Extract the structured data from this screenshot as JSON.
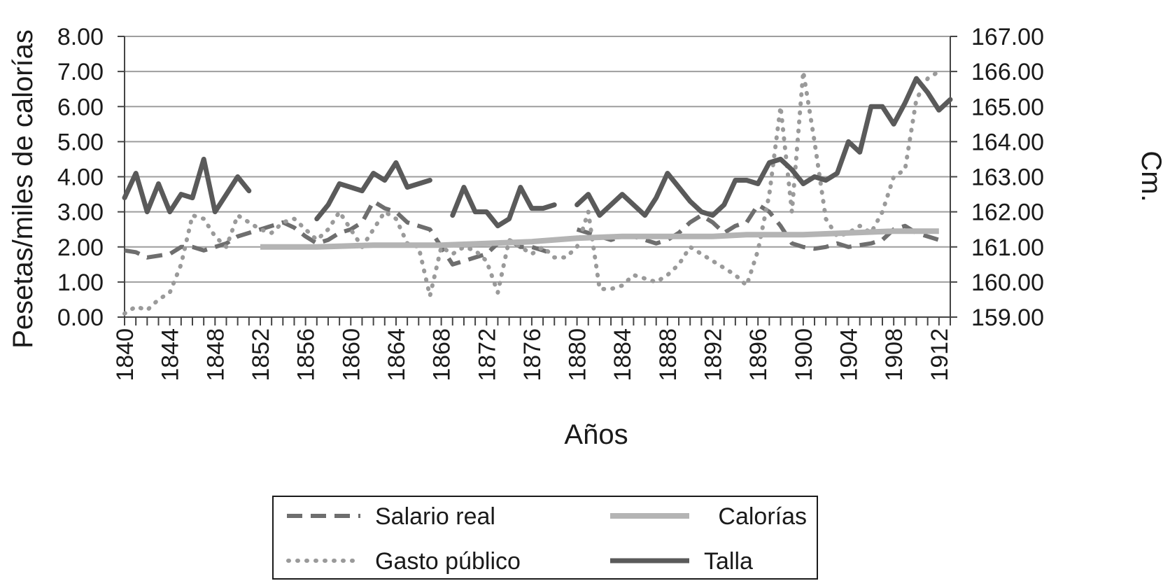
{
  "chart_data": {
    "type": "line",
    "xlabel": "Años",
    "ylabel_left": "Pesetas/miles de calorías",
    "ylabel_right": "Cm.",
    "x_tick_labels": [
      "1840",
      "1844",
      "1848",
      "1852",
      "1856",
      "1860",
      "1864",
      "1868",
      "1872",
      "1876",
      "1880",
      "1884",
      "1888",
      "1892",
      "1896",
      "1900",
      "1904",
      "1908",
      "1912"
    ],
    "x_tick_years": [
      1840,
      1844,
      1848,
      1852,
      1856,
      1860,
      1864,
      1868,
      1872,
      1876,
      1880,
      1884,
      1888,
      1892,
      1896,
      1900,
      1904,
      1908,
      1912
    ],
    "xlim": [
      1840,
      1913
    ],
    "ylim_left": [
      0,
      8
    ],
    "ylim_right": [
      159,
      167
    ],
    "y_ticks_left": [
      "0.00",
      "1.00",
      "2.00",
      "3.00",
      "4.00",
      "5.00",
      "6.00",
      "7.00",
      "8.00"
    ],
    "y_ticks_right": [
      "159.00",
      "160.00",
      "161.00",
      "162.00",
      "163.00",
      "164.00",
      "165.00",
      "166.00",
      "167.00"
    ],
    "grid": "horizontal",
    "legend_position": "bottom",
    "series": [
      {
        "name": "Salario real",
        "axis": "left",
        "style": "dashed",
        "color": "#6e6e6e",
        "points": [
          [
            1840,
            1.9
          ],
          [
            1841,
            1.85
          ],
          [
            1842,
            1.7
          ],
          [
            1843,
            1.75
          ],
          [
            1844,
            1.8
          ],
          [
            1845,
            2.0
          ],
          [
            1846,
            2.0
          ],
          [
            1847,
            1.9
          ],
          [
            1848,
            2.0
          ],
          [
            1849,
            2.1
          ],
          [
            1850,
            2.3
          ],
          [
            1851,
            2.4
          ],
          [
            1852,
            2.5
          ],
          [
            1853,
            2.6
          ],
          [
            1854,
            2.7
          ],
          [
            1855,
            2.55
          ],
          [
            1856,
            2.3
          ],
          [
            1857,
            2.1
          ],
          [
            1858,
            2.2
          ],
          [
            1859,
            2.4
          ],
          [
            1860,
            2.5
          ],
          [
            1861,
            2.7
          ],
          [
            1862,
            3.3
          ],
          [
            1863,
            3.1
          ],
          [
            1864,
            3.0
          ],
          [
            1865,
            2.7
          ],
          [
            1866,
            2.6
          ],
          [
            1867,
            2.5
          ],
          [
            1868,
            2.0
          ],
          [
            1869,
            1.5
          ],
          [
            1870,
            1.6
          ],
          [
            1871,
            1.7
          ],
          [
            1872,
            1.8
          ],
          [
            1873,
            2.1
          ],
          [
            1874,
            2.2
          ],
          [
            1875,
            2.0
          ],
          [
            1876,
            2.0
          ],
          [
            1877,
            1.9
          ],
          [
            1878,
            1.8
          ],
          [
            1879,
            null
          ],
          [
            1880,
            2.5
          ],
          [
            1881,
            2.4
          ],
          [
            1882,
            2.3
          ],
          [
            1883,
            2.2
          ],
          [
            1884,
            2.3
          ],
          [
            1885,
            2.3
          ],
          [
            1886,
            2.2
          ],
          [
            1887,
            2.1
          ],
          [
            1888,
            2.2
          ],
          [
            1889,
            2.4
          ],
          [
            1890,
            2.7
          ],
          [
            1891,
            2.9
          ],
          [
            1892,
            2.7
          ],
          [
            1893,
            2.4
          ],
          [
            1894,
            2.6
          ],
          [
            1895,
            2.7
          ],
          [
            1896,
            3.2
          ],
          [
            1897,
            3.0
          ],
          [
            1898,
            2.6
          ],
          [
            1899,
            2.1
          ],
          [
            1900,
            2.0
          ],
          [
            1901,
            1.95
          ],
          [
            1902,
            2.0
          ],
          [
            1903,
            2.1
          ],
          [
            1904,
            2.0
          ],
          [
            1905,
            2.05
          ],
          [
            1906,
            2.1
          ],
          [
            1907,
            2.2
          ],
          [
            1908,
            2.5
          ],
          [
            1909,
            2.6
          ],
          [
            1910,
            2.4
          ],
          [
            1911,
            2.3
          ],
          [
            1912,
            2.2
          ]
        ]
      },
      {
        "name": "Gasto público",
        "axis": "left",
        "style": "dotted",
        "color": "#9a9a9a",
        "points": [
          [
            1840,
            0.1
          ],
          [
            1841,
            0.3
          ],
          [
            1842,
            0.2
          ],
          [
            1843,
            0.5
          ],
          [
            1844,
            0.7
          ],
          [
            1845,
            1.5
          ],
          [
            1846,
            2.9
          ],
          [
            1847,
            2.8
          ],
          [
            1848,
            2.3
          ],
          [
            1849,
            2.0
          ],
          [
            1850,
            2.9
          ],
          [
            1851,
            2.7
          ],
          [
            1852,
            2.5
          ],
          [
            1853,
            2.4
          ],
          [
            1854,
            2.7
          ],
          [
            1855,
            2.8
          ],
          [
            1856,
            2.5
          ],
          [
            1857,
            2.2
          ],
          [
            1858,
            2.5
          ],
          [
            1859,
            3.0
          ],
          [
            1860,
            2.5
          ],
          [
            1861,
            2.0
          ],
          [
            1862,
            2.5
          ],
          [
            1863,
            3.0
          ],
          [
            1864,
            2.8
          ],
          [
            1865,
            2.1
          ],
          [
            1866,
            2.0
          ],
          [
            1867,
            0.6
          ],
          [
            1868,
            2.0
          ],
          [
            1869,
            1.8
          ],
          [
            1870,
            2.0
          ],
          [
            1871,
            1.9
          ],
          [
            1872,
            1.6
          ],
          [
            1873,
            0.7
          ],
          [
            1874,
            2.2
          ],
          [
            1875,
            2.0
          ],
          [
            1876,
            1.8
          ],
          [
            1877,
            2.0
          ],
          [
            1878,
            1.7
          ],
          [
            1879,
            1.7
          ],
          [
            1880,
            2.0
          ],
          [
            1881,
            3.0
          ],
          [
            1882,
            0.8
          ],
          [
            1883,
            0.8
          ],
          [
            1884,
            0.9
          ],
          [
            1885,
            1.2
          ],
          [
            1886,
            1.1
          ],
          [
            1887,
            1.0
          ],
          [
            1888,
            1.2
          ],
          [
            1889,
            1.5
          ],
          [
            1890,
            2.0
          ],
          [
            1891,
            1.8
          ],
          [
            1892,
            1.6
          ],
          [
            1893,
            1.4
          ],
          [
            1894,
            1.2
          ],
          [
            1895,
            0.9
          ],
          [
            1896,
            1.9
          ],
          [
            1897,
            3.5
          ],
          [
            1898,
            6.0
          ],
          [
            1899,
            3.0
          ],
          [
            1900,
            7.0
          ],
          [
            1901,
            5.0
          ],
          [
            1902,
            2.8
          ],
          [
            1903,
            2.3
          ],
          [
            1904,
            2.4
          ],
          [
            1905,
            2.6
          ],
          [
            1906,
            2.4
          ],
          [
            1907,
            3.0
          ],
          [
            1908,
            4.0
          ],
          [
            1909,
            4.2
          ],
          [
            1910,
            6.2
          ],
          [
            1911,
            6.8
          ],
          [
            1912,
            7.0
          ]
        ]
      },
      {
        "name": "Calorías",
        "axis": "left",
        "style": "solid-light",
        "color": "#b4b4b4",
        "points": [
          [
            1852,
            2.0
          ],
          [
            1857,
            2.0
          ],
          [
            1862,
            2.05
          ],
          [
            1868,
            2.05
          ],
          [
            1872,
            2.1
          ],
          [
            1876,
            2.15
          ],
          [
            1880,
            2.25
          ],
          [
            1884,
            2.3
          ],
          [
            1888,
            2.3
          ],
          [
            1892,
            2.3
          ],
          [
            1895,
            2.35
          ],
          [
            1900,
            2.35
          ],
          [
            1904,
            2.4
          ],
          [
            1908,
            2.45
          ],
          [
            1912,
            2.45
          ]
        ]
      },
      {
        "name": "Talla",
        "axis": "right",
        "style": "solid",
        "color": "#5a5a5a",
        "points": [
          [
            1840,
            162.4
          ],
          [
            1841,
            163.1
          ],
          [
            1842,
            162.0
          ],
          [
            1843,
            162.8
          ],
          [
            1844,
            162.0
          ],
          [
            1845,
            162.5
          ],
          [
            1846,
            162.4
          ],
          [
            1847,
            163.5
          ],
          [
            1848,
            162.0
          ],
          [
            1849,
            162.5
          ],
          [
            1850,
            163.0
          ],
          [
            1851,
            162.6
          ],
          [
            1852,
            null
          ],
          [
            1857,
            161.8
          ],
          [
            1858,
            162.2
          ],
          [
            1859,
            162.8
          ],
          [
            1860,
            162.7
          ],
          [
            1861,
            162.6
          ],
          [
            1862,
            163.1
          ],
          [
            1863,
            162.9
          ],
          [
            1864,
            163.4
          ],
          [
            1865,
            162.7
          ],
          [
            1866,
            162.8
          ],
          [
            1867,
            162.9
          ],
          [
            1868,
            null
          ],
          [
            1869,
            161.9
          ],
          [
            1870,
            162.7
          ],
          [
            1871,
            162.0
          ],
          [
            1872,
            162.0
          ],
          [
            1873,
            161.6
          ],
          [
            1874,
            161.8
          ],
          [
            1875,
            162.7
          ],
          [
            1876,
            162.1
          ],
          [
            1877,
            162.1
          ],
          [
            1878,
            162.2
          ],
          [
            1879,
            null
          ],
          [
            1880,
            162.2
          ],
          [
            1881,
            162.5
          ],
          [
            1882,
            161.9
          ],
          [
            1883,
            162.2
          ],
          [
            1884,
            162.5
          ],
          [
            1885,
            162.2
          ],
          [
            1886,
            161.9
          ],
          [
            1887,
            162.4
          ],
          [
            1888,
            163.1
          ],
          [
            1889,
            162.7
          ],
          [
            1890,
            162.3
          ],
          [
            1891,
            162.0
          ],
          [
            1892,
            161.9
          ],
          [
            1893,
            162.2
          ],
          [
            1894,
            162.9
          ],
          [
            1895,
            162.9
          ],
          [
            1896,
            162.8
          ],
          [
            1897,
            163.4
          ],
          [
            1898,
            163.5
          ],
          [
            1899,
            163.2
          ],
          [
            1900,
            162.8
          ],
          [
            1901,
            163.0
          ],
          [
            1902,
            162.9
          ],
          [
            1903,
            163.1
          ],
          [
            1904,
            164.0
          ],
          [
            1905,
            163.7
          ],
          [
            1906,
            165.0
          ],
          [
            1907,
            165.0
          ],
          [
            1908,
            164.5
          ],
          [
            1909,
            165.1
          ],
          [
            1910,
            165.8
          ],
          [
            1911,
            165.4
          ],
          [
            1912,
            164.9
          ],
          [
            1913,
            165.2
          ]
        ]
      }
    ]
  },
  "legend": {
    "items": [
      {
        "label": "Salario real",
        "style": "dashed"
      },
      {
        "label": "Calorías",
        "style": "solid-light"
      },
      {
        "label": "Gasto público",
        "style": "dotted"
      },
      {
        "label": "Talla",
        "style": "solid"
      }
    ]
  }
}
